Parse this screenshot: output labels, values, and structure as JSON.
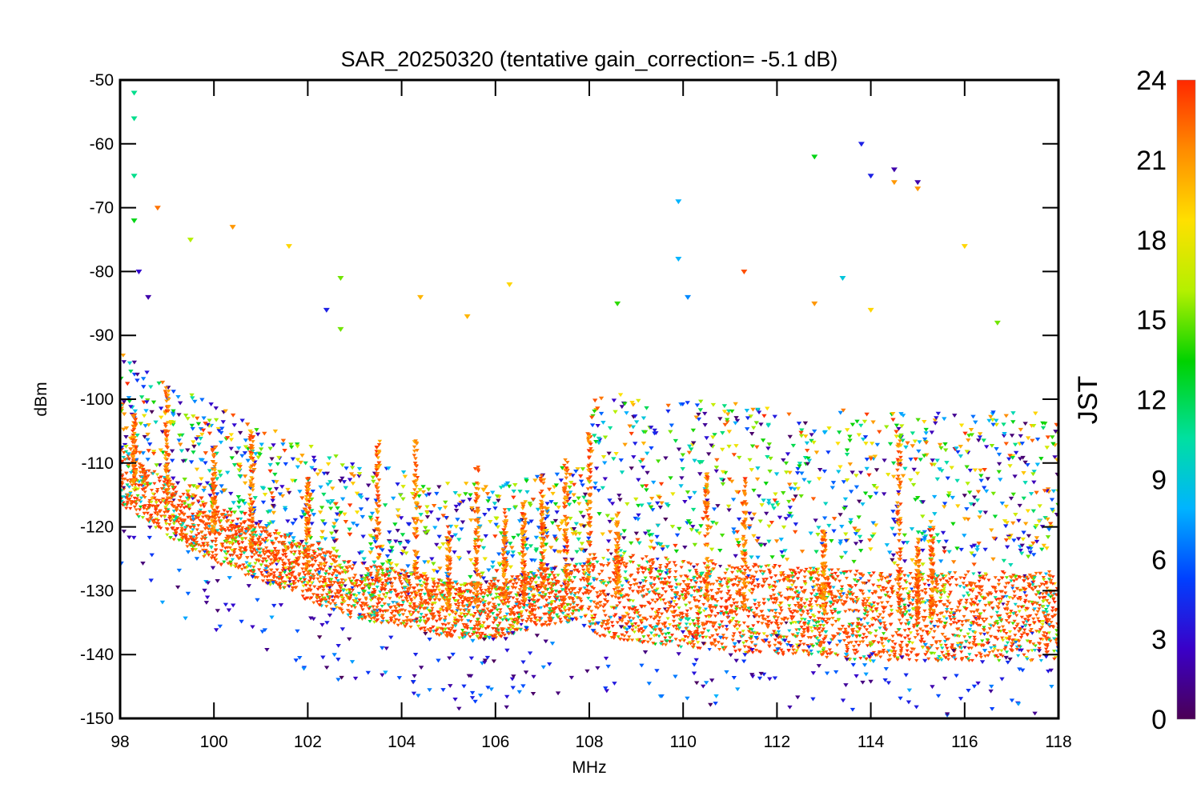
{
  "chart_data": {
    "type": "scatter",
    "title": "SAR_20250320 (tentative gain_correction= -5.1 dB)",
    "xlabel": "MHz",
    "ylabel": "dBm",
    "xlim": [
      98,
      118
    ],
    "ylim": [
      -150,
      -50
    ],
    "x_ticks": [
      "98",
      "100",
      "102",
      "104",
      "106",
      "108",
      "110",
      "112",
      "114",
      "116",
      "118"
    ],
    "y_ticks": [
      "-50",
      "-60",
      "-70",
      "-80",
      "-90",
      "-100",
      "-110",
      "-120",
      "-130",
      "-140",
      "-150"
    ],
    "colorbar": {
      "label": "JST",
      "range": [
        0,
        24
      ],
      "ticks": [
        "0",
        "3",
        "6",
        "9",
        "12",
        "15",
        "18",
        "21",
        "24"
      ],
      "colormap": "rainbow",
      "colors": [
        "#4b0055",
        "#3a00c8",
        "#0040ff",
        "#00b4ff",
        "#00e0a0",
        "#00d200",
        "#b4f000",
        "#ffe000",
        "#ff8c00",
        "#ff2800"
      ]
    },
    "marker": "asterisk",
    "grid": false,
    "noise_floor_dBm": [
      {
        "x": 98.0,
        "y": -112
      },
      {
        "x": 99.0,
        "y": -117
      },
      {
        "x": 100.0,
        "y": -121
      },
      {
        "x": 101.0,
        "y": -124
      },
      {
        "x": 102.0,
        "y": -127
      },
      {
        "x": 103.0,
        "y": -130
      },
      {
        "x": 104.0,
        "y": -131
      },
      {
        "x": 105.0,
        "y": -133
      },
      {
        "x": 106.0,
        "y": -133
      },
      {
        "x": 107.0,
        "y": -131
      },
      {
        "x": 108.0,
        "y": -130
      },
      {
        "x": 110.0,
        "y": -132
      },
      {
        "x": 112.0,
        "y": -133
      },
      {
        "x": 114.0,
        "y": -134
      },
      {
        "x": 116.0,
        "y": -134
      },
      {
        "x": 118.0,
        "y": -134
      }
    ],
    "notable_points": [
      {
        "x": 98.3,
        "y": -52,
        "jst": 11
      },
      {
        "x": 98.3,
        "y": -56,
        "jst": 11
      },
      {
        "x": 98.3,
        "y": -65,
        "jst": 11
      },
      {
        "x": 98.3,
        "y": -72,
        "jst": 13
      },
      {
        "x": 98.8,
        "y": -70,
        "jst": 22
      },
      {
        "x": 100.4,
        "y": -73,
        "jst": 21
      },
      {
        "x": 101.6,
        "y": -76,
        "jst": 19
      },
      {
        "x": 99.5,
        "y": -75,
        "jst": 16
      },
      {
        "x": 98.4,
        "y": -80,
        "jst": 3
      },
      {
        "x": 98.6,
        "y": -84,
        "jst": 2
      },
      {
        "x": 102.7,
        "y": -81,
        "jst": 15
      },
      {
        "x": 102.7,
        "y": -89,
        "jst": 15
      },
      {
        "x": 102.4,
        "y": -86,
        "jst": 4
      },
      {
        "x": 104.4,
        "y": -84,
        "jst": 20
      },
      {
        "x": 105.4,
        "y": -87,
        "jst": 20
      },
      {
        "x": 106.3,
        "y": -82,
        "jst": 19
      },
      {
        "x": 108.6,
        "y": -85,
        "jst": 14
      },
      {
        "x": 109.9,
        "y": -69,
        "jst": 8
      },
      {
        "x": 109.9,
        "y": -78,
        "jst": 8
      },
      {
        "x": 110.1,
        "y": -84,
        "jst": 7
      },
      {
        "x": 111.3,
        "y": -80,
        "jst": 23
      },
      {
        "x": 112.8,
        "y": -62,
        "jst": 13
      },
      {
        "x": 112.8,
        "y": -85,
        "jst": 21
      },
      {
        "x": 113.4,
        "y": -81,
        "jst": 9
      },
      {
        "x": 113.8,
        "y": -60,
        "jst": 4
      },
      {
        "x": 114.0,
        "y": -65,
        "jst": 4
      },
      {
        "x": 114.0,
        "y": -86,
        "jst": 19
      },
      {
        "x": 114.5,
        "y": -64,
        "jst": 2
      },
      {
        "x": 114.5,
        "y": -66,
        "jst": 21
      },
      {
        "x": 115.0,
        "y": -67,
        "jst": 21
      },
      {
        "x": 115.0,
        "y": -66,
        "jst": 2
      },
      {
        "x": 116.0,
        "y": -76,
        "jst": 19
      },
      {
        "x": 116.7,
        "y": -88,
        "jst": 15
      }
    ]
  }
}
